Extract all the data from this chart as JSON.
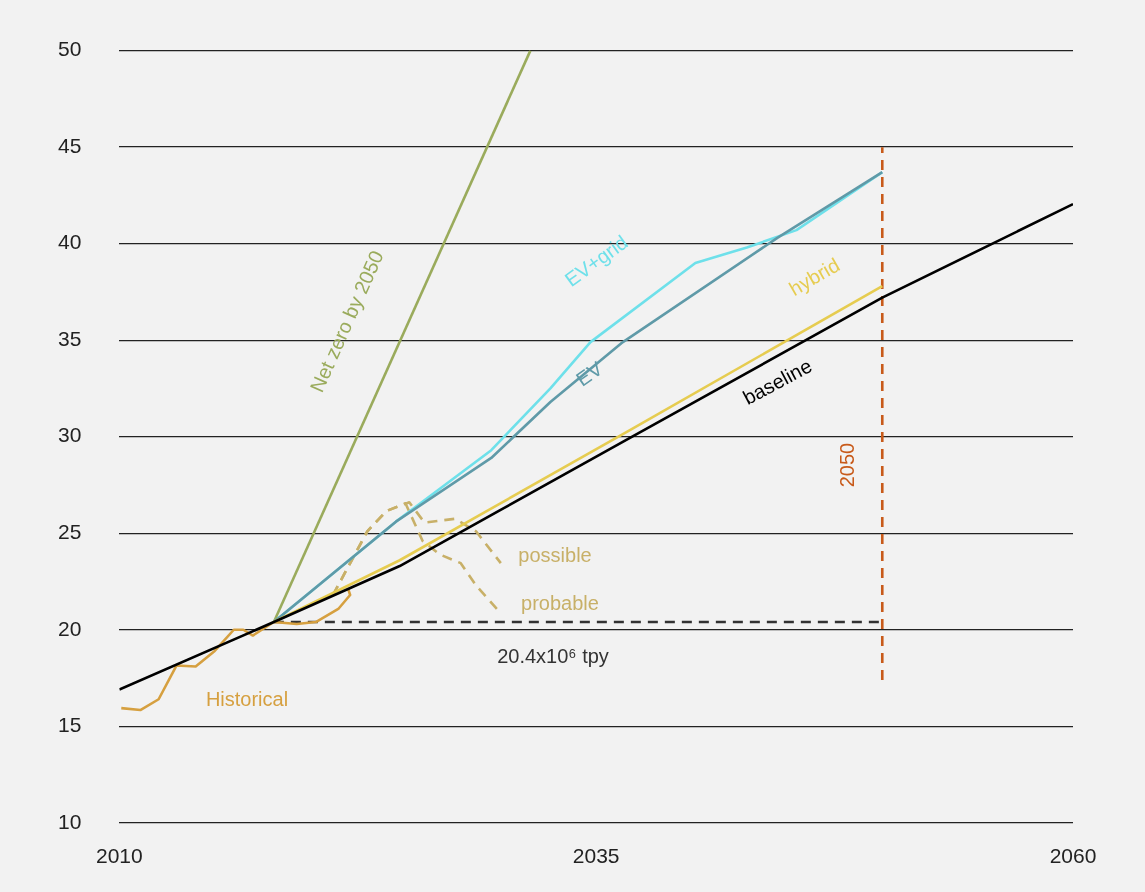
{
  "chart_data": {
    "type": "line",
    "xlim": [
      2010,
      2060
    ],
    "xticks": [
      2010,
      2035,
      2060
    ],
    "ylim": [
      10,
      50
    ],
    "yticks": [
      10,
      15,
      20,
      25,
      30,
      35,
      40,
      45,
      50
    ],
    "grid": "y",
    "legend": false,
    "marker": "none",
    "series": [
      {
        "name": "baseline",
        "color": "#000000",
        "x": [
          2010,
          2018.1,
          2024.7,
          2036.7,
          2050,
          2060
        ],
        "values": [
          16.9,
          20.4,
          23.3,
          29.9,
          37.2,
          42.05
        ]
      },
      {
        "name": "hybrid",
        "color": "#e6cc50",
        "x": [
          2018.1,
          2024.7,
          2036.7,
          2050
        ],
        "values": [
          20.4,
          23.6,
          30.3,
          37.8
        ]
      },
      {
        "name": "EV",
        "color": "#5f9aa8",
        "x": [
          2018.1,
          2024.5,
          2029.5,
          2032.6,
          2036.4,
          2044.5,
          2050
        ],
        "values": [
          20.4,
          25.6,
          28.9,
          31.8,
          34.9,
          40.3,
          43.7
        ]
      },
      {
        "name": "EV+grid",
        "color": "#6ee0ea",
        "x": [
          2018.1,
          2024.5,
          2029.5,
          2032.6,
          2034.7,
          2040.2,
          2042.9,
          2045.5,
          2050
        ],
        "values": [
          20.4,
          25.6,
          29.3,
          32.5,
          34.9,
          39.0,
          39.8,
          40.7,
          43.7
        ]
      },
      {
        "name": "Net zero by 2050",
        "color": "#9aab5c",
        "x": [
          2018.1,
          2031.55
        ],
        "values": [
          20.4,
          50
        ]
      },
      {
        "name": "Historical",
        "color": "#d6a040",
        "x": [
          2010.1,
          2011.1,
          2012.06,
          2013.0,
          2014.0,
          2015.0,
          2016.0,
          2016.5,
          2017.0,
          2018.1,
          2019.3,
          2020.3,
          2021.5,
          2022.1,
          2022.0
        ],
        "values": [
          15.94,
          15.84,
          16.4,
          18.15,
          18.1,
          18.9,
          20.0,
          20.0,
          19.7,
          20.4,
          20.3,
          20.4,
          21.1,
          21.8,
          22.1
        ]
      },
      {
        "name": "possible",
        "color": "#c8b068",
        "line_style": "dashed",
        "x": [
          2021.2,
          2023.0,
          2024.0,
          2025.2,
          2026.0,
          2027.6,
          2028.7,
          2030.0
        ],
        "values": [
          21.8,
          25.1,
          26.15,
          26.6,
          25.55,
          25.75,
          25.1,
          23.45
        ]
      },
      {
        "name": "probable",
        "color": "#c8b068",
        "line_style": "dashed",
        "x": [
          2021.2,
          2023.0,
          2024.0,
          2025.0,
          2025.9,
          2026.8,
          2027.9,
          2028.7,
          2030.0
        ],
        "values": [
          21.8,
          25.1,
          26.15,
          26.55,
          24.6,
          23.9,
          23.45,
          22.3,
          20.85
        ]
      },
      {
        "name": "20.4x10⁶ tpy",
        "color": "#333333",
        "line_style": "dashed",
        "x": [
          2018.1,
          2050
        ],
        "values": [
          20.4,
          20.4
        ]
      },
      {
        "name": "2050",
        "color": "#c85a1a",
        "line_style": "dashed",
        "x": [
          2050,
          2050
        ],
        "values": [
          17.4,
          45
        ]
      }
    ]
  }
}
